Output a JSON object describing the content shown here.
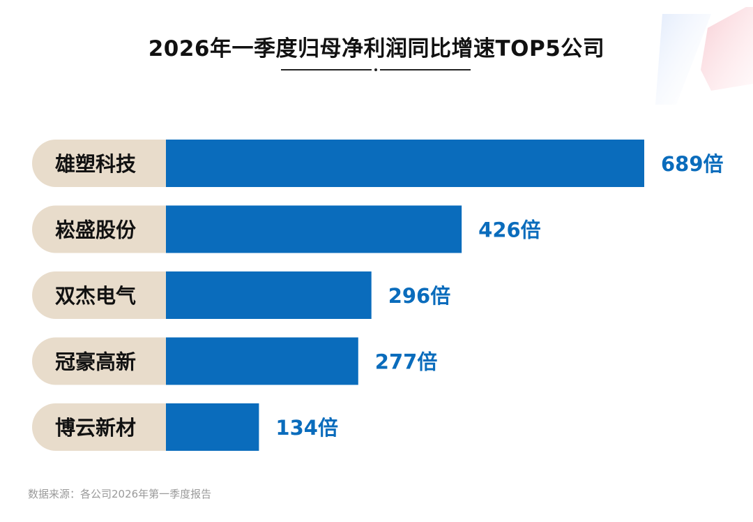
{
  "chart_data": {
    "type": "bar",
    "orientation": "horizontal",
    "title": "2026年一季度归母净利润同比增速TOP5公司",
    "categories": [
      "雄塑科技",
      "崧盛股份",
      "双杰电气",
      "冠豪高新",
      "博云新材"
    ],
    "values": [
      689,
      426,
      296,
      277,
      134
    ],
    "value_labels": [
      "689倍",
      "426倍",
      "296倍",
      "277倍",
      "134倍"
    ],
    "unit": "倍",
    "xlim": [
      0,
      689
    ],
    "grid": false,
    "legend": "none",
    "colors": {
      "bar": "#0a6cbc",
      "label_pill": "#e8dccb",
      "value_text": "#0a6cbc"
    }
  },
  "source_note": "数据来源：各公司2026年第一季度报告"
}
